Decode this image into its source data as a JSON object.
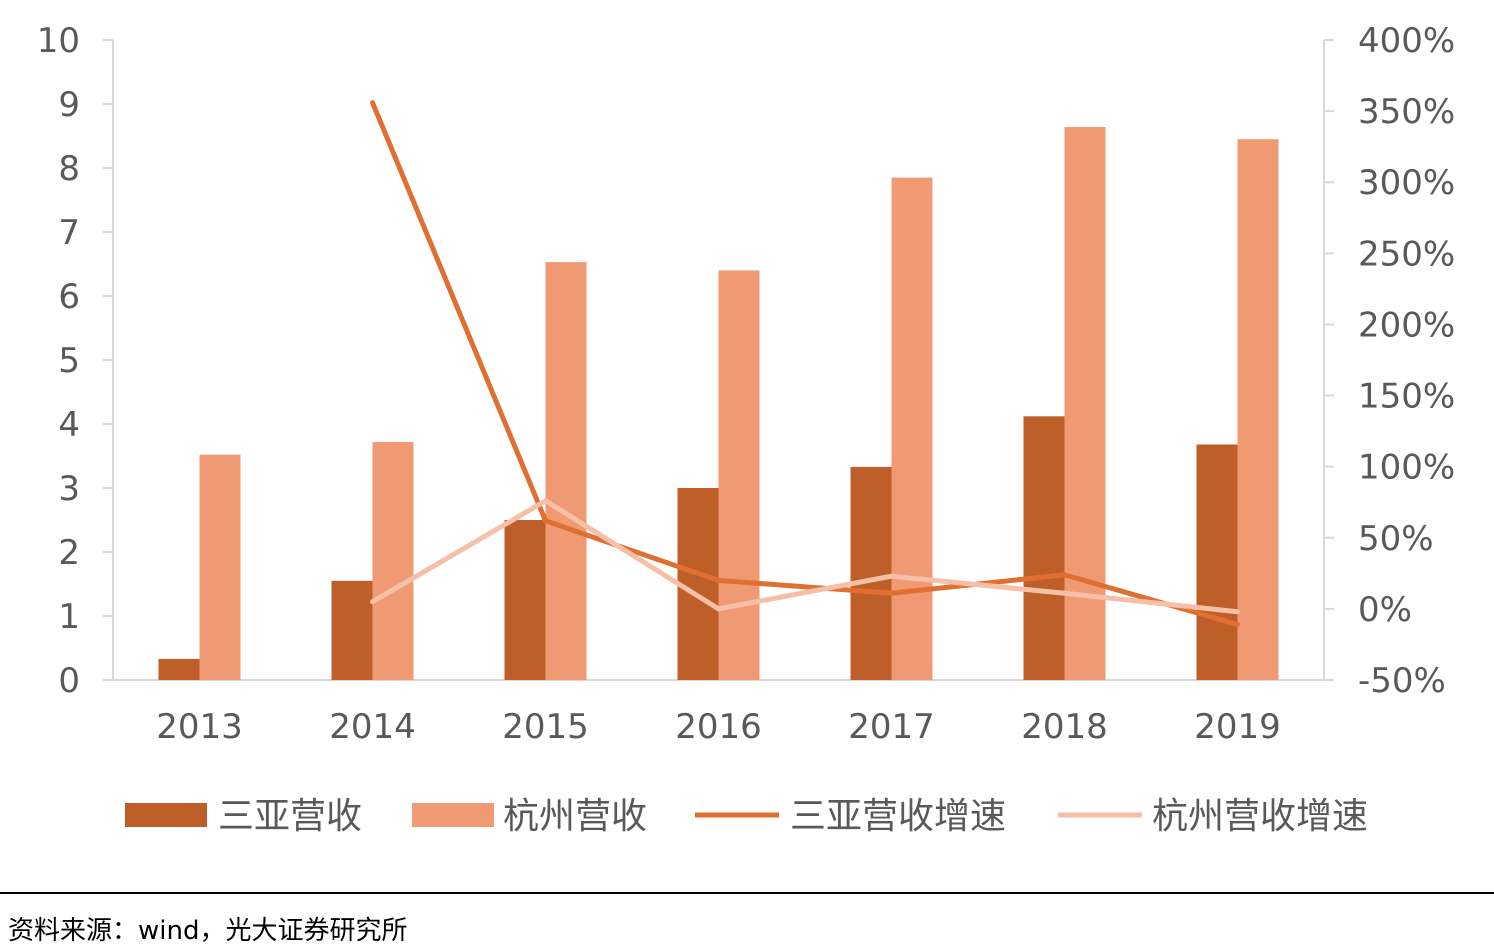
{
  "chart_data": {
    "type": "bar",
    "categories": [
      "2013",
      "2014",
      "2015",
      "2016",
      "2017",
      "2018",
      "2019"
    ],
    "series": [
      {
        "name": "三亚营收",
        "kind": "bar",
        "axis": "left",
        "color": "#BE5F2A",
        "values": [
          0.33,
          1.55,
          2.5,
          3.0,
          3.33,
          4.12,
          3.68
        ]
      },
      {
        "name": "杭州营收",
        "kind": "bar",
        "axis": "left",
        "color": "#F09A74",
        "values": [
          3.52,
          3.72,
          6.53,
          6.4,
          7.85,
          8.64,
          8.45
        ]
      },
      {
        "name": "三亚营收增速",
        "kind": "line",
        "axis": "right",
        "color": "#E07032",
        "values": [
          null,
          3.56,
          0.62,
          0.2,
          0.11,
          0.24,
          -0.11
        ]
      },
      {
        "name": "杭州营收增速",
        "kind": "line",
        "axis": "right",
        "color": "#F6C0A8",
        "values": [
          null,
          0.05,
          0.76,
          0.0,
          0.23,
          0.11,
          -0.02
        ]
      }
    ],
    "y_left": {
      "min": 0,
      "max": 10,
      "ticks": [
        "0",
        "1",
        "2",
        "3",
        "4",
        "5",
        "6",
        "7",
        "8",
        "9",
        "10"
      ]
    },
    "y_right": {
      "min": -0.5,
      "max": 4.0,
      "ticks": [
        "-50%",
        "0%",
        "50%",
        "100%",
        "150%",
        "200%",
        "250%",
        "300%",
        "350%",
        "400%"
      ]
    },
    "legend_position": "bottom",
    "grid": false
  },
  "footer": {
    "source": "资料来源：wind，光大证券研究所"
  }
}
